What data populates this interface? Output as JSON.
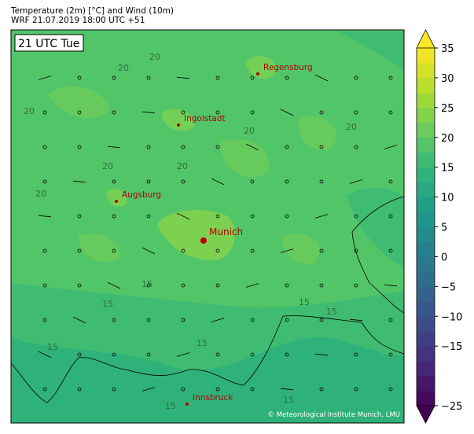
{
  "header": {
    "title": "Temperature (2m) [°C] and Wind (10m)",
    "subtitle": "WRF 21.07.2019 18:00 UTC +51"
  },
  "map": {
    "time_label": "21 UTC Tue",
    "copyright": "© Meteorological Institute Munich, LMU",
    "cities": [
      {
        "name": "Regensburg",
        "major": false
      },
      {
        "name": "Ingolstadt",
        "major": false
      },
      {
        "name": "Augsburg",
        "major": false
      },
      {
        "name": "Munich",
        "major": true
      },
      {
        "name": "Innsbruck",
        "major": false
      }
    ],
    "city_color": "#b00000",
    "contour_labels": [
      "20",
      "20",
      "20",
      "20",
      "20",
      "20",
      "20",
      "20",
      "15",
      "15",
      "15",
      "15",
      "15",
      "15",
      "15",
      "15"
    ]
  },
  "colorbar": {
    "colormap": "viridis",
    "min": -25,
    "max": 35,
    "step": 2.5,
    "extend": "both",
    "ticks": [
      "35",
      "30",
      "25",
      "20",
      "15",
      "10",
      "5",
      "0",
      "−5",
      "−10",
      "−15",
      "−25"
    ]
  }
}
